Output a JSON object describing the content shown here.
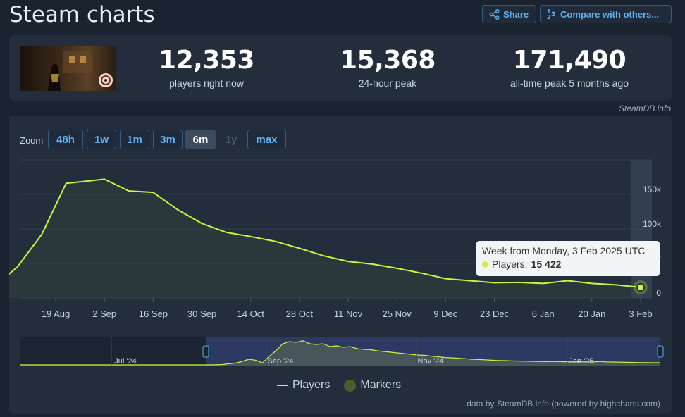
{
  "page": {
    "title": "Steam charts"
  },
  "toolbar": {
    "share_label": "Share",
    "compare_label": "Compare with others..."
  },
  "stats": {
    "current": {
      "value": "12,353",
      "label": "players right now"
    },
    "peak_24h": {
      "value": "15,368",
      "label": "24-hour peak"
    },
    "all_time": {
      "value": "171,490",
      "label": "all-time peak 5 months ago"
    }
  },
  "credit_top": "SteamDB.info",
  "zoom": {
    "label": "Zoom",
    "buttons": [
      {
        "label": "48h",
        "state": "normal"
      },
      {
        "label": "1w",
        "state": "normal"
      },
      {
        "label": "1m",
        "state": "normal"
      },
      {
        "label": "3m",
        "state": "normal"
      },
      {
        "label": "6m",
        "state": "active"
      },
      {
        "label": "1y",
        "state": "disabled"
      },
      {
        "label": "max",
        "state": "normal"
      }
    ]
  },
  "tooltip": {
    "title": "Week from Monday, 3 Feb 2025 UTC",
    "series_label": "Players:",
    "value": "15 422"
  },
  "legend": {
    "players": "Players",
    "markers": "Markers"
  },
  "credit_bottom": "data by SteamDB.info (powered by highcharts.com)",
  "colors": {
    "line": "#c9f73a",
    "marker": "#4b5d2e",
    "accent": "#5fb0f0"
  },
  "chart_data": {
    "type": "line",
    "series": [
      {
        "name": "Players",
        "x": [
          "2024-08-05",
          "2024-08-08",
          "2024-08-15",
          "2024-08-22",
          "2024-09-02",
          "2024-09-09",
          "2024-09-16",
          "2024-09-23",
          "2024-09-30",
          "2024-10-07",
          "2024-10-14",
          "2024-10-21",
          "2024-10-28",
          "2024-11-04",
          "2024-11-11",
          "2024-11-18",
          "2024-11-25",
          "2024-12-02",
          "2024-12-09",
          "2024-12-16",
          "2024-12-23",
          "2024-12-30",
          "2025-01-06",
          "2025-01-13",
          "2025-01-20",
          "2025-01-27",
          "2025-02-03"
        ],
        "values": [
          32000,
          45000,
          92000,
          166000,
          172000,
          155000,
          153000,
          128000,
          108000,
          95000,
          89000,
          82000,
          72000,
          61000,
          53000,
          49000,
          43000,
          36000,
          28000,
          25000,
          22000,
          22500,
          21000,
          25000,
          21000,
          19000,
          15422
        ]
      }
    ],
    "x_ticks": [
      "19 Aug",
      "2 Sep",
      "16 Sep",
      "30 Sep",
      "14 Oct",
      "28 Oct",
      "11 Nov",
      "25 Nov",
      "9 Dec",
      "23 Dec",
      "6 Jan",
      "20 Jan",
      "3 Feb"
    ],
    "y_ticks": [
      "0",
      "50k",
      "100k",
      "150k"
    ],
    "ylim": [
      0,
      200000
    ],
    "legend_position": "bottom-center",
    "grid": true,
    "navigator": {
      "labels": [
        "Jul '24",
        "Sep '24",
        "Nov '24",
        "Jan '25"
      ],
      "values": [
        0,
        0,
        0,
        0,
        0,
        0,
        0,
        0,
        0,
        0,
        0,
        0,
        0,
        0,
        0,
        0,
        0,
        0,
        0,
        0,
        0,
        0,
        0,
        0,
        0,
        0,
        0,
        0,
        0,
        500,
        2000,
        8000,
        12000,
        25000,
        40000,
        33000,
        14000,
        60000,
        100000,
        150000,
        165000,
        160000,
        171000,
        150000,
        145000,
        150000,
        130000,
        135000,
        125000,
        130000,
        115000,
        110000,
        108000,
        100000,
        95000,
        90000,
        85000,
        80000,
        75000,
        70000,
        68000,
        62000,
        58000,
        52000,
        50000,
        47000,
        44000,
        40000,
        38000,
        36000,
        33000,
        31000,
        30000,
        28000,
        27000,
        26000,
        25000,
        24000,
        23000,
        24000,
        23000,
        22000,
        21000,
        22000,
        21000,
        20000,
        24000,
        21000,
        20000,
        19000,
        18000,
        17000,
        16000,
        16000,
        15000,
        15000
      ]
    }
  }
}
